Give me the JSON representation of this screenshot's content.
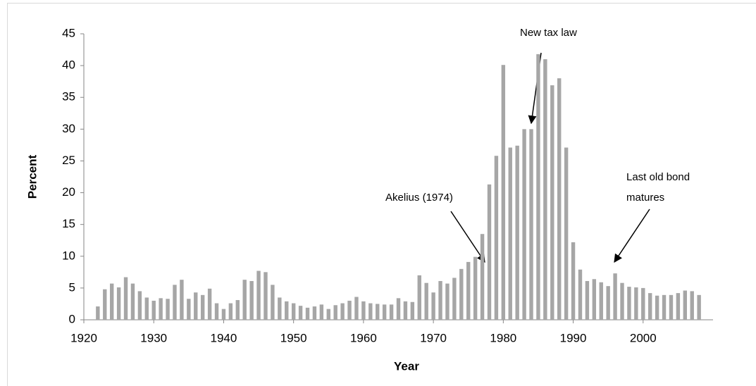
{
  "chart_data": {
    "type": "bar",
    "x_label": "Year",
    "y_label": "Percent",
    "x": [
      1922,
      1923,
      1924,
      1925,
      1926,
      1927,
      1928,
      1929,
      1930,
      1931,
      1932,
      1933,
      1934,
      1935,
      1936,
      1937,
      1938,
      1939,
      1940,
      1941,
      1942,
      1943,
      1944,
      1945,
      1946,
      1947,
      1948,
      1949,
      1950,
      1951,
      1952,
      1953,
      1954,
      1955,
      1956,
      1957,
      1958,
      1959,
      1960,
      1961,
      1962,
      1963,
      1964,
      1965,
      1966,
      1967,
      1968,
      1969,
      1970,
      1971,
      1972,
      1973,
      1974,
      1975,
      1976,
      1977,
      1978,
      1979,
      1980,
      1981,
      1982,
      1983,
      1984,
      1985,
      1986,
      1987,
      1988,
      1989,
      1990,
      1991,
      1992,
      1993,
      1994,
      1995,
      1996,
      1997,
      1998,
      1999,
      2000,
      2001,
      2002,
      2003,
      2004,
      2005,
      2006,
      2007,
      2008
    ],
    "values": [
      2.1,
      4.8,
      5.7,
      5.1,
      6.7,
      5.7,
      4.5,
      3.5,
      3.0,
      3.4,
      3.3,
      5.5,
      6.3,
      3.3,
      4.3,
      3.9,
      4.9,
      2.6,
      1.7,
      2.6,
      3.1,
      6.3,
      6.1,
      7.7,
      7.5,
      5.5,
      3.5,
      2.9,
      2.6,
      2.2,
      1.9,
      2.1,
      2.4,
      1.7,
      2.3,
      2.6,
      3.0,
      3.6,
      2.9,
      2.6,
      2.5,
      2.4,
      2.4,
      3.4,
      2.9,
      2.8,
      7.0,
      5.8,
      4.3,
      6.1,
      5.7,
      6.6,
      8.0,
      9.1,
      9.9,
      13.5,
      21.3,
      25.8,
      40.1,
      27.1,
      27.4,
      30.0,
      30.0,
      41.8,
      41.0,
      36.9,
      38.0,
      27.1,
      12.2,
      7.9,
      6.1,
      6.4,
      5.9,
      5.3,
      7.3,
      5.8,
      5.2,
      5.1,
      5.0,
      4.2,
      3.8,
      3.9,
      3.9,
      4.2,
      4.6,
      4.5,
      3.9
    ],
    "color": "#a6a6a6",
    "xlim": [
      1920,
      2010
    ],
    "xticks": [
      1920,
      1930,
      1940,
      1950,
      1960,
      1970,
      1980,
      1990,
      2000
    ],
    "ylim": [
      0,
      45
    ],
    "yticks": [
      0,
      5,
      10,
      15,
      20,
      25,
      30,
      35,
      40,
      45
    ],
    "grid": false,
    "annotations": [
      {
        "text": [
          "New tax law"
        ]
      },
      {
        "text": [
          "Akelius (1974)"
        ]
      },
      {
        "text": [
          "Last old bond",
          "matures"
        ]
      }
    ]
  }
}
